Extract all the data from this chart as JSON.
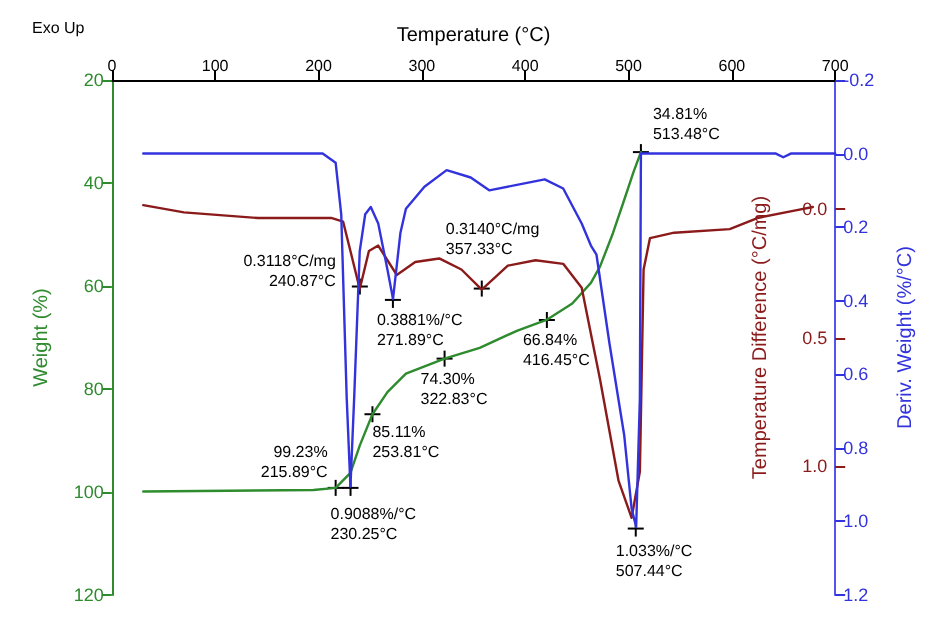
{
  "chart_data": {
    "type": "line",
    "xlabel": "Temperature (°C)",
    "ylabel": "Weight (%)",
    "y2label": "Temperature Difference (°C/mg)",
    "y3label": "Deriv. Weight (%/°C)",
    "xlim": [
      0,
      700
    ],
    "xticks": [
      0,
      100,
      200,
      300,
      400,
      500,
      600,
      700
    ],
    "ylim": [
      120,
      20
    ],
    "yticks": [
      20,
      40,
      60,
      80,
      100,
      120
    ],
    "y2lim": [
      1.5,
      -0.5
    ],
    "y2ticks": [
      {
        "value": 0,
        "label": "0.0"
      },
      {
        "value": 0.5,
        "label": "0.5"
      },
      {
        "value": 1,
        "label": "1.0"
      }
    ],
    "y3lim": [
      1.2,
      -0.2
    ],
    "y3ticks": [
      {
        "value": -0.2,
        "label": "-0.2"
      },
      {
        "value": 0,
        "label": "0.0"
      },
      {
        "value": 0.2,
        "label": "0.2"
      },
      {
        "value": 0.4,
        "label": "0.4"
      },
      {
        "value": 0.6,
        "label": "0.6"
      },
      {
        "value": 0.8,
        "label": "0.8"
      },
      {
        "value": 1,
        "label": "1.0"
      },
      {
        "value": 1.2,
        "label": "1.2"
      }
    ],
    "grid": false,
    "marker": "none",
    "line_style": "solid",
    "series": [
      {
        "color": "#2e8b2e",
        "x": [
          30.4,
          195.1,
          216.6,
          230.9,
          239.9,
          252.2,
          266.7,
          284.6,
          322,
          356,
          391.9,
          420.6,
          445.6,
          463.6,
          472.5,
          485,
          495.8,
          504.8,
          512
        ],
        "values": [
          99.9,
          99.6,
          99.2,
          96.3,
          91,
          84.9,
          80.6,
          77,
          74.1,
          72,
          68.7,
          66.6,
          63.4,
          59.4,
          56.2,
          49.7,
          43.3,
          37.9,
          34
        ]
      },
      {
        "color": "#8b1a1a",
        "axis": "y2",
        "x": [
          30.4,
          69.8,
          141.4,
          213,
          223.8,
          230.9,
          239.9,
          248.8,
          257.8,
          266.7,
          275.7,
          293.6,
          316.8,
          338.3,
          358,
          383.2,
          410,
          436.8,
          454.7,
          472.5,
          490.4,
          503,
          511,
          514.6,
          520.8,
          544.2,
          597.9,
          624.7,
          660.5,
          678.4
        ],
        "values": [
          -0.014,
          0.014,
          0.036,
          0.036,
          0.05,
          0.164,
          0.312,
          0.164,
          0.143,
          0.2,
          0.257,
          0.207,
          0.193,
          0.236,
          0.314,
          0.221,
          0.2,
          0.214,
          0.307,
          0.664,
          1.057,
          1.2,
          1.021,
          0.236,
          0.114,
          0.093,
          0.079,
          0.036,
          0.007,
          -0.007
        ]
      },
      {
        "color": "#3333dd",
        "axis": "y3",
        "x": [
          30.4,
          204,
          216.6,
          222,
          227.3,
          230.9,
          234.5,
          239.9,
          245.2,
          250.6,
          257.8,
          266.7,
          272.1,
          279.3,
          284.6,
          302.5,
          324,
          347.3,
          365.2,
          392,
          418.9,
          436.8,
          454.7,
          463.6,
          469,
          481.5,
          495.8,
          503,
          507.4,
          511,
          512,
          642.6,
          649.8,
          657,
          700
        ],
        "values": [
          0,
          0,
          0.025,
          0.165,
          0.665,
          0.905,
          0.665,
          0.265,
          0.165,
          0.145,
          0.19,
          0.315,
          0.395,
          0.215,
          0.15,
          0.09,
          0.045,
          0.065,
          0.1,
          0.085,
          0.07,
          0.095,
          0.19,
          0.25,
          0.275,
          0.515,
          0.765,
          0.965,
          1.015,
          0.665,
          0,
          0,
          0.01,
          0,
          0
        ]
      }
    ],
    "annotations": [
      "Exo Up",
      {
        "text": "99.23%\n215.89°C",
        "x": 216.6,
        "y": 99.2
      },
      {
        "text": "85.11%\n253.81°C",
        "x": 252.2,
        "y": 84.9
      },
      {
        "text": "74.30%\n322.83°C",
        "x": 322,
        "y": 74.1
      },
      {
        "text": "66.84%\n416.45°C",
        "x": 421,
        "y": 66.6
      },
      {
        "text": "34.81%\n513.48°C",
        "x": 512,
        "y": 34
      },
      {
        "text": "0.3118°C/mg\n240.87°C",
        "x": 240,
        "y": 60.1
      },
      {
        "text": "0.3881%/°C\n271.89°C",
        "x": 272,
        "y": 62.7
      },
      {
        "text": "0.3140°C/mg\n357.33°C",
        "x": 358,
        "y": 60.5
      },
      {
        "text": "0.9088%/°C\n230.25°C",
        "x": 231,
        "y": 99.2
      },
      {
        "text": "1.033%/°C\n507.44°C",
        "x": 507,
        "y": 107.1
      }
    ]
  }
}
